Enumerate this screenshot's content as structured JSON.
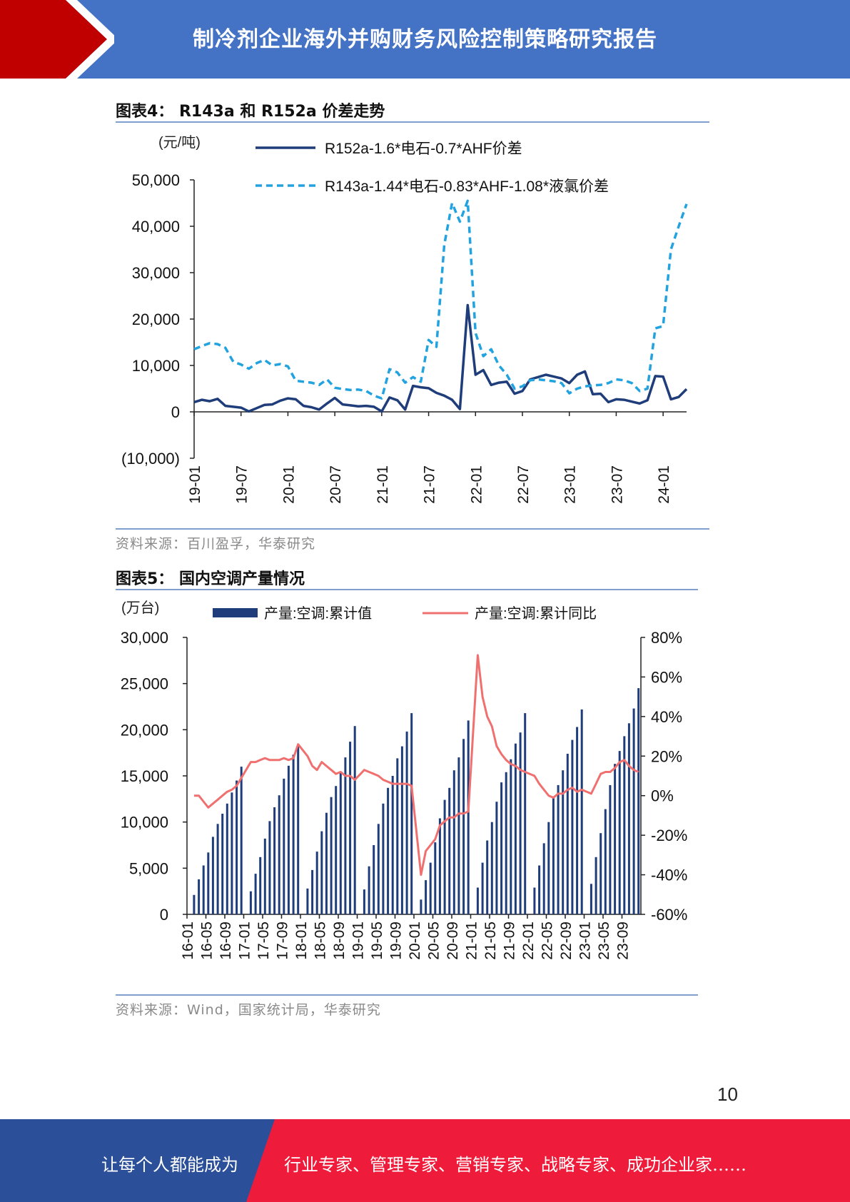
{
  "header": {
    "title": "制冷剂企业海外并购财务风险控制策略研究报告",
    "colors": {
      "bar": "#4472c4",
      "accent": "#c00000"
    }
  },
  "figure4": {
    "title": "图表4： R143a 和 R152a 价差走势",
    "source": "资料来源：百川盈孚，华泰研究",
    "chart_data": {
      "type": "line",
      "y_unit_label": "(元/吨)",
      "ylim": [
        -10000,
        50000
      ],
      "y_ticks": [
        "50,000",
        "40,000",
        "30,000",
        "20,000",
        "10,000",
        "0",
        "(10,000)"
      ],
      "x_range": [
        "2019-01",
        "2024-04"
      ],
      "x_ticks": [
        "19-01",
        "19-07",
        "20-01",
        "20-07",
        "21-01",
        "21-07",
        "22-01",
        "22-07",
        "23-01",
        "23-07",
        "24-01"
      ],
      "grid": false,
      "legend": "top",
      "series": [
        {
          "name": "R152a-1.6*电石-0.7*AHF价差",
          "color": "#1f3d7a",
          "style": "solid",
          "points": [
            [
              "2019-01",
              2100
            ],
            [
              "2019-02",
              2600
            ],
            [
              "2019-03",
              2300
            ],
            [
              "2019-04",
              2800
            ],
            [
              "2019-05",
              1300
            ],
            [
              "2019-06",
              1100
            ],
            [
              "2019-07",
              900
            ],
            [
              "2019-08",
              100
            ],
            [
              "2019-09",
              800
            ],
            [
              "2019-10",
              1500
            ],
            [
              "2019-11",
              1600
            ],
            [
              "2019-12",
              2400
            ],
            [
              "2020-01",
              2900
            ],
            [
              "2020-02",
              2700
            ],
            [
              "2020-03",
              1300
            ],
            [
              "2020-04",
              1000
            ],
            [
              "2020-05",
              500
            ],
            [
              "2020-06",
              1800
            ],
            [
              "2020-07",
              3000
            ],
            [
              "2020-08",
              1600
            ],
            [
              "2020-09",
              1400
            ],
            [
              "2020-10",
              1200
            ],
            [
              "2020-11",
              1300
            ],
            [
              "2020-12",
              1100
            ],
            [
              "2021-01",
              100
            ],
            [
              "2021-02",
              3100
            ],
            [
              "2021-03",
              2500
            ],
            [
              "2021-04",
              500
            ],
            [
              "2021-05",
              5600
            ],
            [
              "2021-06",
              5300
            ],
            [
              "2021-07",
              5100
            ],
            [
              "2021-08",
              4100
            ],
            [
              "2021-09",
              3500
            ],
            [
              "2021-10",
              2600
            ],
            [
              "2021-11",
              600
            ],
            [
              "2021-12",
              23000
            ],
            [
              "2022-01",
              8000
            ],
            [
              "2022-02",
              9000
            ],
            [
              "2022-03",
              5800
            ],
            [
              "2022-04",
              6300
            ],
            [
              "2022-05",
              6500
            ],
            [
              "2022-06",
              3900
            ],
            [
              "2022-07",
              4500
            ],
            [
              "2022-08",
              7000
            ],
            [
              "2022-09",
              7500
            ],
            [
              "2022-10",
              8000
            ],
            [
              "2022-11",
              7600
            ],
            [
              "2022-12",
              7200
            ],
            [
              "2023-01",
              6200
            ],
            [
              "2023-02",
              8000
            ],
            [
              "2023-03",
              8700
            ],
            [
              "2023-04",
              3800
            ],
            [
              "2023-05",
              3900
            ],
            [
              "2023-06",
              2100
            ],
            [
              "2023-07",
              2700
            ],
            [
              "2023-08",
              2600
            ],
            [
              "2023-09",
              2200
            ],
            [
              "2023-10",
              1800
            ],
            [
              "2023-11",
              2500
            ],
            [
              "2023-12",
              7700
            ],
            [
              "2024-01",
              7600
            ],
            [
              "2024-02",
              2700
            ],
            [
              "2024-03",
              3200
            ],
            [
              "2024-04",
              4900
            ]
          ]
        },
        {
          "name": "R143a-1.44*电石-0.83*AHF-1.08*液氯价差",
          "color": "#22a3e0",
          "style": "dashed",
          "points": [
            [
              "2019-01",
              13500
            ],
            [
              "2019-02",
              14200
            ],
            [
              "2019-03",
              14800
            ],
            [
              "2019-04",
              14600
            ],
            [
              "2019-05",
              13800
            ],
            [
              "2019-06",
              10800
            ],
            [
              "2019-07",
              10200
            ],
            [
              "2019-08",
              9300
            ],
            [
              "2019-09",
              10500
            ],
            [
              "2019-10",
              11200
            ],
            [
              "2019-11",
              10000
            ],
            [
              "2019-12",
              10300
            ],
            [
              "2020-01",
              9800
            ],
            [
              "2020-02",
              6700
            ],
            [
              "2020-03",
              6500
            ],
            [
              "2020-04",
              6300
            ],
            [
              "2020-05",
              5800
            ],
            [
              "2020-06",
              7000
            ],
            [
              "2020-07",
              5200
            ],
            [
              "2020-08",
              4900
            ],
            [
              "2020-09",
              4700
            ],
            [
              "2020-10",
              4800
            ],
            [
              "2020-11",
              4500
            ],
            [
              "2020-12",
              3500
            ],
            [
              "2021-01",
              2900
            ],
            [
              "2021-02",
              9200
            ],
            [
              "2021-03",
              8500
            ],
            [
              "2021-04",
              6300
            ],
            [
              "2021-05",
              7500
            ],
            [
              "2021-06",
              6500
            ],
            [
              "2021-07",
              15500
            ],
            [
              "2021-08",
              14000
            ],
            [
              "2021-09",
              36000
            ],
            [
              "2021-10",
              45000
            ],
            [
              "2021-11",
              41000
            ],
            [
              "2021-12",
              45500
            ],
            [
              "2022-01",
              17000
            ],
            [
              "2022-02",
              12000
            ],
            [
              "2022-03",
              13500
            ],
            [
              "2022-04",
              10000
            ],
            [
              "2022-05",
              8000
            ],
            [
              "2022-06",
              5000
            ],
            [
              "2022-07",
              5500
            ],
            [
              "2022-08",
              6800
            ],
            [
              "2022-09",
              7000
            ],
            [
              "2022-10",
              6800
            ],
            [
              "2022-11",
              6600
            ],
            [
              "2022-12",
              6200
            ],
            [
              "2023-01",
              4000
            ],
            [
              "2023-02",
              5000
            ],
            [
              "2023-03",
              5500
            ],
            [
              "2023-04",
              5700
            ],
            [
              "2023-05",
              5800
            ],
            [
              "2023-06",
              6200
            ],
            [
              "2023-07",
              7000
            ],
            [
              "2023-08",
              6800
            ],
            [
              "2023-09",
              6200
            ],
            [
              "2023-10",
              4500
            ],
            [
              "2023-11",
              5000
            ],
            [
              "2023-12",
              18000
            ],
            [
              "2024-01",
              18500
            ],
            [
              "2024-02",
              35000
            ],
            [
              "2024-03",
              40000
            ],
            [
              "2024-04",
              44800
            ]
          ]
        }
      ]
    }
  },
  "figure5": {
    "title": "图表5： 国内空调产量情况",
    "source": "资料来源：Wind，国家统计局，华泰研究",
    "chart_data": {
      "type": "bar",
      "y_unit_label": "(万台)",
      "ylim": [
        0,
        30000
      ],
      "y2lim": [
        -60,
        80
      ],
      "y_ticks": [
        "30,000",
        "25,000",
        "20,000",
        "15,000",
        "10,000",
        "5,000",
        "0"
      ],
      "y2_ticks": [
        "80%",
        "60%",
        "40%",
        "20%",
        "0%",
        "-20%",
        "-40%",
        "-60%"
      ],
      "x_ticks": [
        "16-01",
        "16-05",
        "16-09",
        "17-01",
        "17-05",
        "17-09",
        "18-01",
        "18-05",
        "18-09",
        "19-01",
        "19-05",
        "19-09",
        "20-01",
        "20-05",
        "20-09",
        "21-01",
        "21-05",
        "21-09",
        "22-01",
        "22-05",
        "22-09",
        "23-01",
        "23-05",
        "23-09"
      ],
      "grid": false,
      "legend": "top",
      "categories": [
        "16-01",
        "16-02",
        "16-03",
        "16-04",
        "16-05",
        "16-06",
        "16-07",
        "16-08",
        "16-09",
        "16-10",
        "16-11",
        "16-12",
        "17-01",
        "17-02",
        "17-03",
        "17-04",
        "17-05",
        "17-06",
        "17-07",
        "17-08",
        "17-09",
        "17-10",
        "17-11",
        "17-12",
        "18-01",
        "18-02",
        "18-03",
        "18-04",
        "18-05",
        "18-06",
        "18-07",
        "18-08",
        "18-09",
        "18-10",
        "18-11",
        "18-12",
        "19-01",
        "19-02",
        "19-03",
        "19-04",
        "19-05",
        "19-06",
        "19-07",
        "19-08",
        "19-09",
        "19-10",
        "19-11",
        "19-12",
        "20-01",
        "20-02",
        "20-03",
        "20-04",
        "20-05",
        "20-06",
        "20-07",
        "20-08",
        "20-09",
        "20-10",
        "20-11",
        "20-12",
        "21-01",
        "21-02",
        "21-03",
        "21-04",
        "21-05",
        "21-06",
        "21-07",
        "21-08",
        "21-09",
        "21-10",
        "21-11",
        "21-12",
        "22-01",
        "22-02",
        "22-03",
        "22-04",
        "22-05",
        "22-06",
        "22-07",
        "22-08",
        "22-09",
        "22-10",
        "22-11",
        "22-12",
        "23-01",
        "23-02",
        "23-03",
        "23-04",
        "23-05",
        "23-06",
        "23-07",
        "23-08",
        "23-09",
        "23-10",
        "23-11",
        "23-12"
      ],
      "series": [
        {
          "name": "产量:空调:累计值",
          "type": "bar",
          "color": "#1f3d7a",
          "values": [
            null,
            2100,
            3800,
            5300,
            6700,
            8400,
            9800,
            10900,
            12000,
            13200,
            14500,
            16000,
            null,
            2500,
            4400,
            6200,
            8200,
            10100,
            11600,
            12900,
            14700,
            16100,
            17300,
            18300,
            null,
            2800,
            4800,
            6800,
            9000,
            11000,
            12700,
            13900,
            15400,
            17000,
            18700,
            20400,
            null,
            2700,
            5200,
            7500,
            9800,
            12000,
            13700,
            15000,
            16900,
            18200,
            19800,
            21800,
            null,
            1600,
            3700,
            5600,
            7800,
            10400,
            12400,
            13700,
            15600,
            17000,
            19000,
            21000,
            null,
            2900,
            5600,
            8000,
            10000,
            12200,
            14300,
            15400,
            16800,
            18500,
            19700,
            21800,
            null,
            2900,
            5300,
            7700,
            10000,
            12600,
            14000,
            15600,
            17400,
            18900,
            20300,
            22200,
            null,
            3300,
            6200,
            8800,
            11400,
            14000,
            16300,
            17700,
            19300,
            20700,
            22300,
            24500
          ]
        },
        {
          "name": "产量:空调:累计同比",
          "type": "line",
          "axis": "right",
          "color": "#f07070",
          "values": [
            null,
            0,
            0,
            -3,
            -6,
            -4,
            -2,
            0,
            2,
            3,
            5,
            9,
            null,
            17,
            17,
            18,
            19,
            18,
            18,
            18,
            19,
            18,
            19,
            26,
            null,
            20,
            15,
            13,
            17,
            15,
            13,
            11,
            12,
            10,
            10,
            8,
            null,
            13,
            12,
            11,
            10,
            8,
            7,
            6,
            6,
            6,
            6,
            5,
            null,
            -40,
            -28,
            -25,
            -22,
            -15,
            -13,
            -11,
            -11,
            -9,
            -9,
            -8,
            null,
            71,
            50,
            40,
            35,
            25,
            21,
            18,
            16,
            15,
            13,
            12,
            null,
            10,
            6,
            3,
            0,
            -1,
            1,
            1,
            3,
            4,
            2,
            3,
            null,
            1,
            6,
            11,
            12,
            12,
            14,
            17,
            18,
            15,
            13,
            12
          ]
        }
      ]
    }
  },
  "page_number": "10",
  "footer": {
    "left_text": "让每个人都能成为",
    "right_text": "行业专家、管理专家、营销专家、战略专家、成功企业家……",
    "colors": {
      "left": "#2c4f9a",
      "right": "#ee1c3a"
    }
  }
}
